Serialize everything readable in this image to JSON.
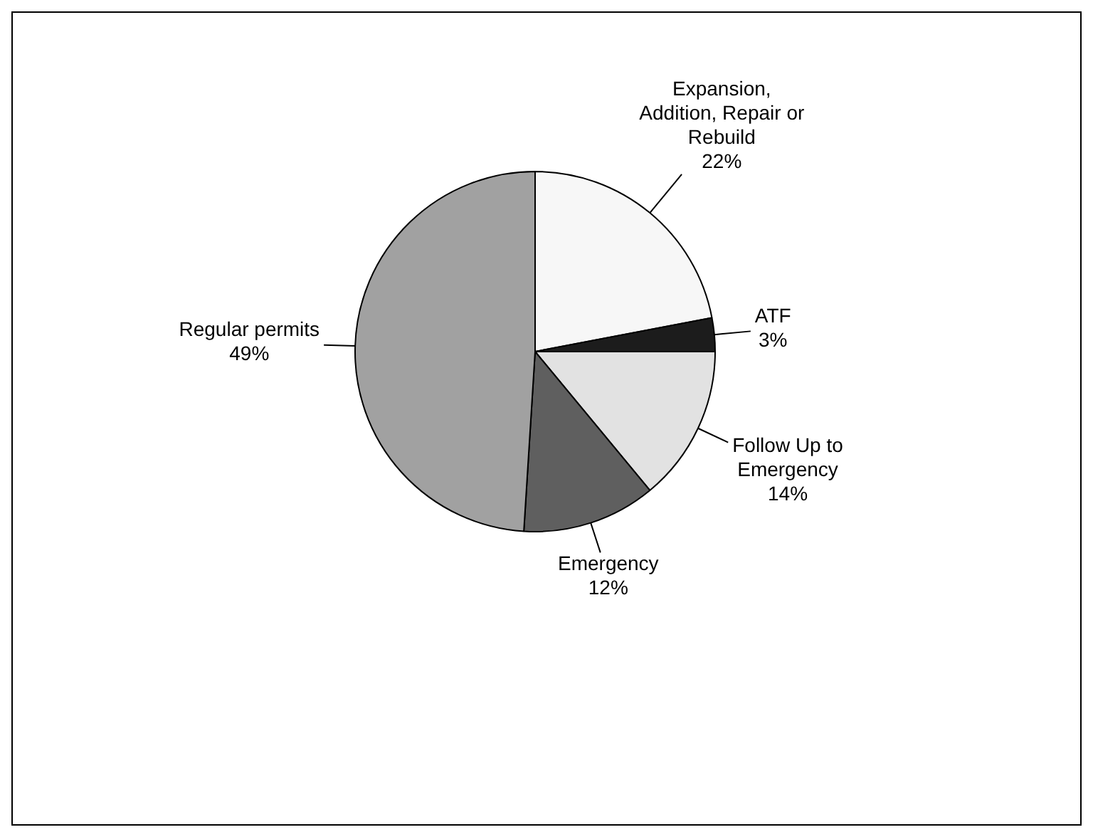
{
  "chart_data": {
    "type": "pie",
    "categories": [
      "Expansion, Addition, Repair or Rebuild",
      "ATF",
      "Follow Up to Emergency",
      "Emergency",
      "Regular permits"
    ],
    "values": [
      22,
      3,
      14,
      12,
      49
    ],
    "colors": [
      "#f7f7f7",
      "#1c1c1c",
      "#e2e2e2",
      "#5f5f5f",
      "#a1a1a1"
    ],
    "value_labels": [
      "22%",
      "3%",
      "14%",
      "12%",
      "49%"
    ],
    "legend": false
  }
}
